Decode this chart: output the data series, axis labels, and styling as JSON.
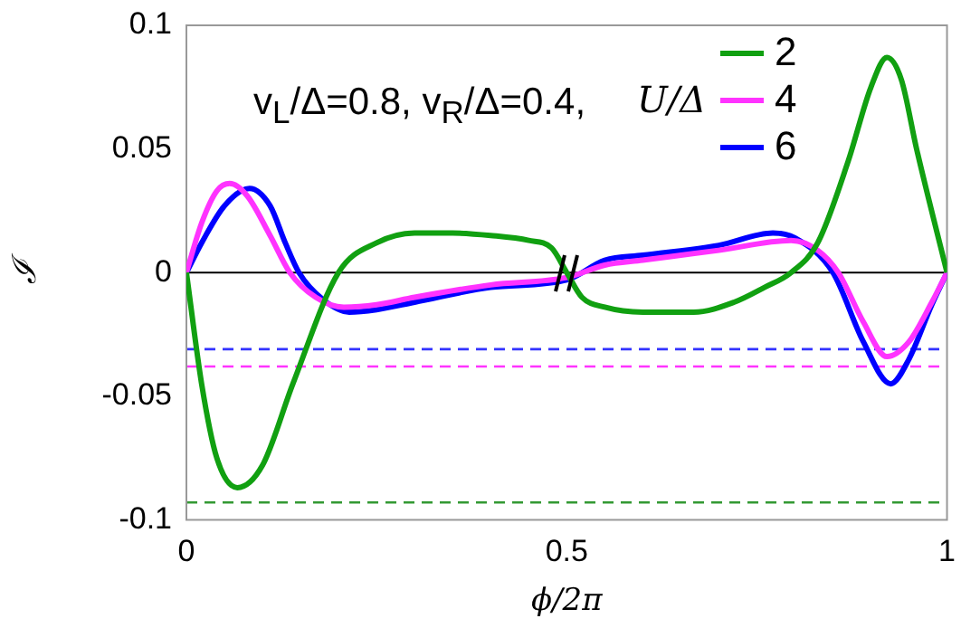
{
  "chart_data": {
    "type": "line",
    "xlabel": "ϕ/2π",
    "ylabel": "ℐ",
    "legend_title": "U/Δ",
    "legend": "top right",
    "annotations": [
      "v$_{L}$/Δ=0.8, v$_{R}$/Δ=0.4,"
    ],
    "xlim": [
      0,
      1
    ],
    "xticks": [
      0,
      0.5,
      1
    ],
    "ylim": [
      -0.1,
      0.1
    ],
    "yticks": [
      0.1,
      0.05,
      0,
      -0.05,
      -0.1
    ],
    "grid": false,
    "marker": "none",
    "line_style": "solid",
    "series": [
      {
        "name": "2",
        "color": "#11a011",
        "x": [
          0,
          0.02,
          0.04,
          0.067,
          0.1,
          0.14,
          0.2,
          0.25,
          0.3,
          0.35,
          0.4,
          0.45,
          0.48,
          0.5,
          0.52,
          0.55,
          0.6,
          0.667,
          0.72,
          0.76,
          0.795,
          0.83,
          0.87,
          0.9,
          0.921,
          0.94,
          0.96,
          1
        ],
        "values": [
          0,
          -0.045,
          -0.075,
          -0.087,
          -0.078,
          -0.045,
          0,
          0.012,
          0.016,
          0.016,
          0.015,
          0.013,
          0.01,
          0.0,
          -0.01,
          -0.014,
          -0.016,
          -0.016,
          -0.012,
          -0.006,
          0,
          0.012,
          0.045,
          0.075,
          0.087,
          0.078,
          0.05,
          0
        ]
      },
      {
        "name": "4",
        "color": "#ff33ff",
        "x": [
          0,
          0.02,
          0.04,
          0.057,
          0.08,
          0.11,
          0.136,
          0.17,
          0.207,
          0.25,
          0.3,
          0.4,
          0.5,
          0.55,
          0.6,
          0.7,
          0.795,
          0.83,
          0.857,
          0.89,
          0.921,
          0.95,
          0.98,
          1
        ],
        "values": [
          0,
          0.02,
          0.033,
          0.036,
          0.031,
          0.015,
          0,
          -0.01,
          -0.014,
          -0.013,
          -0.01,
          -0.005,
          -0.002,
          0.003,
          0.005,
          0.009,
          0.013,
          0.009,
          0,
          -0.02,
          -0.034,
          -0.028,
          -0.012,
          0
        ]
      },
      {
        "name": "6",
        "color": "#0000ff",
        "x": [
          0,
          0.02,
          0.05,
          0.083,
          0.11,
          0.13,
          0.148,
          0.18,
          0.214,
          0.25,
          0.3,
          0.4,
          0.5,
          0.55,
          0.6,
          0.7,
          0.771,
          0.8,
          0.85,
          0.89,
          0.926,
          0.95,
          0.98,
          1
        ],
        "values": [
          0,
          0.012,
          0.027,
          0.034,
          0.027,
          0.012,
          0,
          -0.011,
          -0.016,
          -0.015,
          -0.012,
          -0.006,
          -0.003,
          0.005,
          0.007,
          0.011,
          0.016,
          0.014,
          0,
          -0.028,
          -0.045,
          -0.035,
          -0.013,
          0
        ]
      }
    ],
    "ref_lines": [
      {
        "axis": "y",
        "value": 0,
        "color": "#000000",
        "line_style": "solid"
      },
      {
        "axis": "y",
        "value": -0.031,
        "color": "#3333ff",
        "line_style": "dashed"
      },
      {
        "axis": "y",
        "value": -0.038,
        "color": "#ff33ff",
        "line_style": "dashed"
      },
      {
        "axis": "y",
        "value": -0.093,
        "color": "#339933",
        "line_style": "dashed"
      }
    ]
  }
}
